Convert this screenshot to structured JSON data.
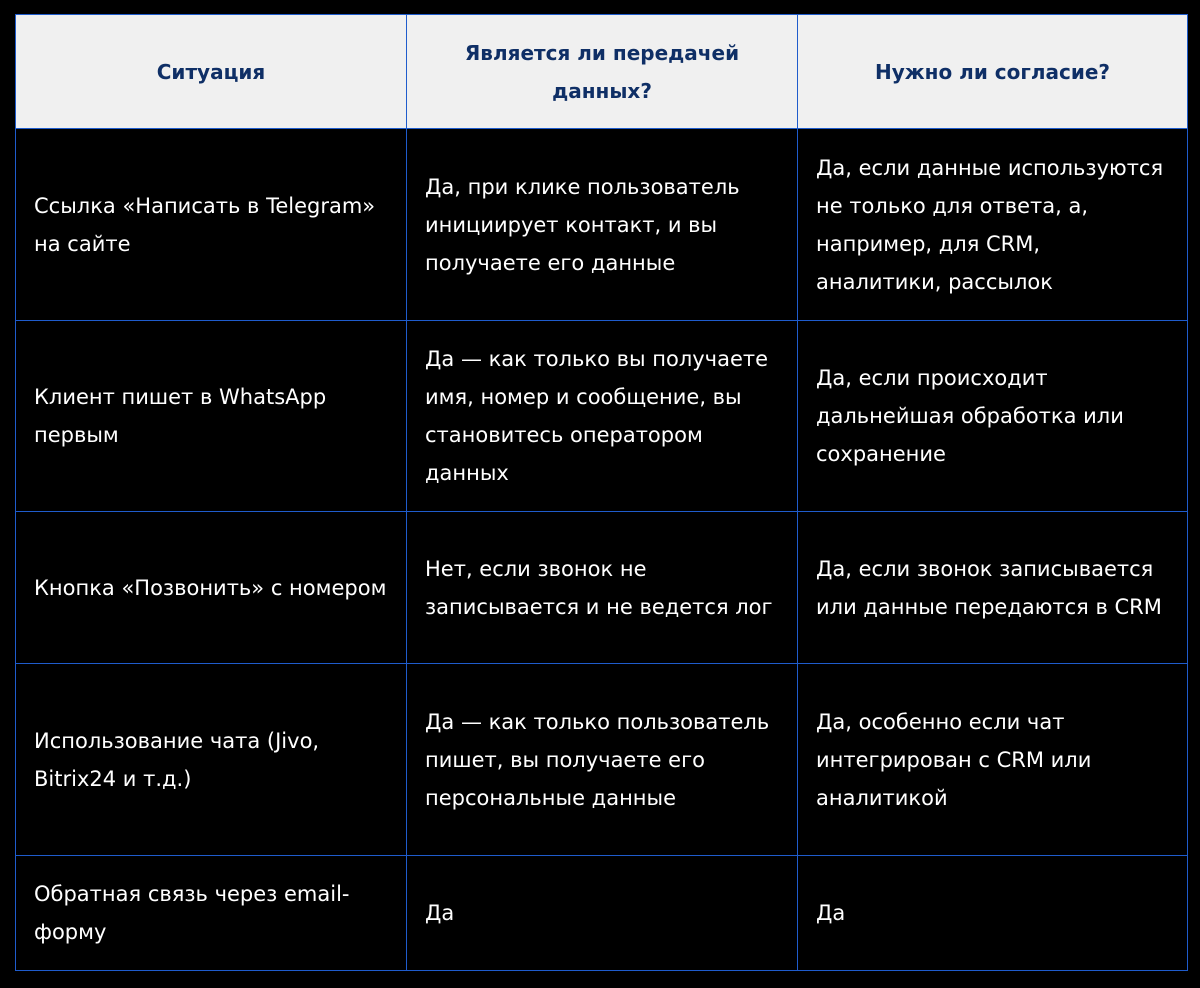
{
  "table": {
    "headers": [
      "Ситуация",
      "Является ли передачей данных?",
      "Нужно ли согласие?"
    ],
    "rows": [
      [
        "Ссылка «Написать в Telegram» на сайте",
        "Да, при клике пользователь инициирует контакт, и вы получаете его данные",
        "Да, если данные используются не только для ответа, а, например, для CRM, аналитики, рассылок"
      ],
      [
        "Клиент пишет в WhatsApp первым",
        "Да — как только вы получаете имя, номер и сообщение, вы становитесь оператором данных",
        "Да, если происходит дальнейшая обработка или сохранение"
      ],
      [
        "Кнопка «Позвонить» с номером",
        "Нет, если звонок не записывается и не ведется лог",
        "Да, если звонок записывается или данные передаются в CRM"
      ],
      [
        "Использование чата (Jivo, Bitrix24 и т.д.)",
        "Да — как только пользователь пишет, вы получаете его персональные данные",
        "Да, особенно если чат интегрирован с CRM или аналитикой"
      ],
      [
        "Обратная связь через email-форму",
        "Да",
        "Да"
      ]
    ]
  },
  "colors": {
    "header_bg": "#f0f0f0",
    "header_text": "#0f2f66",
    "border": "#1f5ccc",
    "body_bg": "#000000",
    "body_text": "#ffffff"
  }
}
